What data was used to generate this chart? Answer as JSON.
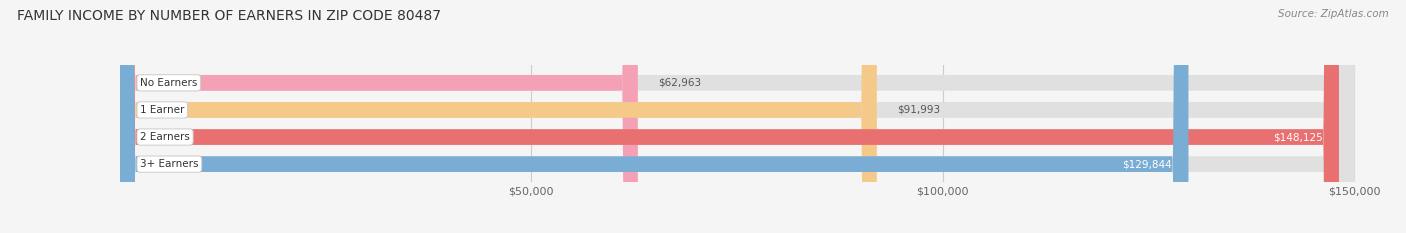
{
  "title": "FAMILY INCOME BY NUMBER OF EARNERS IN ZIP CODE 80487",
  "source": "Source: ZipAtlas.com",
  "categories": [
    "No Earners",
    "1 Earner",
    "2 Earners",
    "3+ Earners"
  ],
  "values": [
    62963,
    91993,
    148125,
    129844
  ],
  "bar_colors": [
    "#f4a0b5",
    "#f5c98a",
    "#e87070",
    "#7aadd4"
  ],
  "label_colors": [
    "#555555",
    "#555555",
    "#ffffff",
    "#ffffff"
  ],
  "xlim_min": 0,
  "xlim_max": 150000,
  "x_tick_values": [
    50000,
    100000,
    150000
  ],
  "x_tick_labels": [
    "$50,000",
    "$100,000",
    "$150,000"
  ],
  "bar_bg_color": "#e0e0e0",
  "title_fontsize": 10,
  "source_fontsize": 7.5,
  "label_fontsize": 7.5,
  "tick_fontsize": 8,
  "bar_height": 0.58,
  "fig_width": 14.06,
  "fig_height": 2.33
}
